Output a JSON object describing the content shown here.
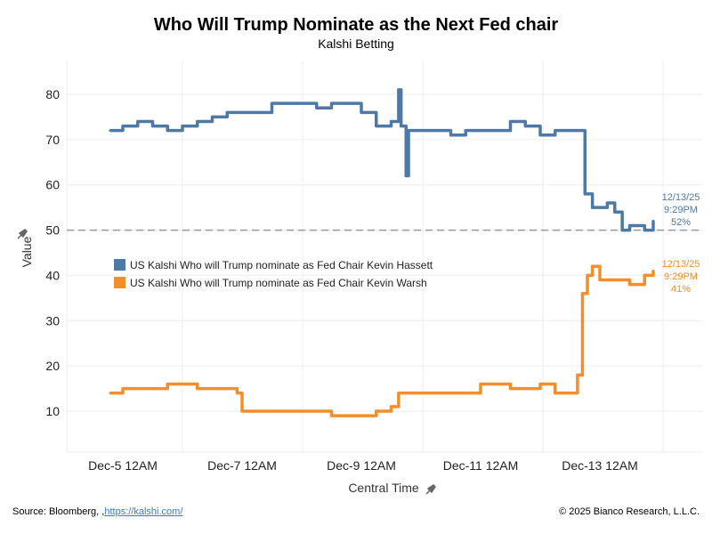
{
  "header": {
    "title": "Who Will Trump Nominate as the Next Fed chair",
    "subtitle": "Kalshi Betting"
  },
  "footer": {
    "source_prefix": "Source: Bloomberg, ,",
    "source_link": "https://kalshi.com/",
    "copyright": "© 2025 Bianco Research, L.L.C."
  },
  "chart_data": {
    "type": "line",
    "title": "Who Will Trump Nominate as the Next Fed chair",
    "subtitle": "Kalshi Betting",
    "xlabel": "Central Time",
    "ylabel": "Value",
    "ylim": [
      1,
      88
    ],
    "yticks": [
      10,
      20,
      30,
      40,
      50,
      60,
      70,
      80
    ],
    "xticks": [
      {
        "t": "2025-12-05T00:00",
        "label": "Dec-5 12AM"
      },
      {
        "t": "2025-12-07T00:00",
        "label": "Dec-7 12AM"
      },
      {
        "t": "2025-12-09T00:00",
        "label": "Dec-9 12AM"
      },
      {
        "t": "2025-12-11T00:00",
        "label": "Dec-11 12AM"
      },
      {
        "t": "2025-12-13T00:00",
        "label": "Dec-13 12AM"
      }
    ],
    "reference_line": 50,
    "grid": true,
    "legend_position": "center-left",
    "series": [
      {
        "name": "US Kalshi Who will Trump nominate as Fed Chair Kevin Hassett",
        "color": "#4e79a7",
        "end_label": {
          "date": "12/13/25",
          "time": "9:29PM",
          "value": "52%"
        },
        "points": [
          [
            "2025-12-04T19:00",
            72
          ],
          [
            "2025-12-05T00:00",
            73
          ],
          [
            "2025-12-05T06:00",
            74
          ],
          [
            "2025-12-05T12:00",
            73
          ],
          [
            "2025-12-05T18:00",
            72
          ],
          [
            "2025-12-06T00:00",
            73
          ],
          [
            "2025-12-06T06:00",
            74
          ],
          [
            "2025-12-06T12:00",
            75
          ],
          [
            "2025-12-06T18:00",
            76
          ],
          [
            "2025-12-07T00:00",
            76
          ],
          [
            "2025-12-07T06:00",
            76
          ],
          [
            "2025-12-07T12:00",
            78
          ],
          [
            "2025-12-07T18:00",
            78
          ],
          [
            "2025-12-08T00:00",
            78
          ],
          [
            "2025-12-08T06:00",
            77
          ],
          [
            "2025-12-08T12:00",
            78
          ],
          [
            "2025-12-08T18:00",
            78
          ],
          [
            "2025-12-09T00:00",
            76
          ],
          [
            "2025-12-09T06:00",
            73
          ],
          [
            "2025-12-09T12:00",
            74
          ],
          [
            "2025-12-09T15:00",
            81
          ],
          [
            "2025-12-09T16:00",
            73
          ],
          [
            "2025-12-09T18:00",
            62
          ],
          [
            "2025-12-09T19:00",
            72
          ],
          [
            "2025-12-10T00:00",
            72
          ],
          [
            "2025-12-10T06:00",
            72
          ],
          [
            "2025-12-10T12:00",
            71
          ],
          [
            "2025-12-10T18:00",
            72
          ],
          [
            "2025-12-11T00:00",
            72
          ],
          [
            "2025-12-11T06:00",
            72
          ],
          [
            "2025-12-11T12:00",
            74
          ],
          [
            "2025-12-11T18:00",
            73
          ],
          [
            "2025-12-12T00:00",
            71
          ],
          [
            "2025-12-12T06:00",
            72
          ],
          [
            "2025-12-12T12:00",
            72
          ],
          [
            "2025-12-12T15:00",
            72
          ],
          [
            "2025-12-12T18:00",
            58
          ],
          [
            "2025-12-12T21:00",
            55
          ],
          [
            "2025-12-13T00:00",
            55
          ],
          [
            "2025-12-13T03:00",
            56
          ],
          [
            "2025-12-13T06:00",
            54
          ],
          [
            "2025-12-13T09:00",
            50
          ],
          [
            "2025-12-13T12:00",
            51
          ],
          [
            "2025-12-13T18:00",
            50
          ],
          [
            "2025-12-13T21:29",
            52
          ]
        ]
      },
      {
        "name": "US Kalshi Who will Trump nominate as Fed Chair Kevin Warsh",
        "color": "#f28e2b",
        "end_label": {
          "date": "12/13/25",
          "time": "9:29PM",
          "value": "41%"
        },
        "points": [
          [
            "2025-12-04T19:00",
            14
          ],
          [
            "2025-12-05T00:00",
            15
          ],
          [
            "2025-12-05T12:00",
            15
          ],
          [
            "2025-12-05T18:00",
            16
          ],
          [
            "2025-12-06T00:00",
            16
          ],
          [
            "2025-12-06T06:00",
            15
          ],
          [
            "2025-12-06T18:00",
            15
          ],
          [
            "2025-12-06T22:00",
            14
          ],
          [
            "2025-12-07T00:00",
            10
          ],
          [
            "2025-12-07T12:00",
            10
          ],
          [
            "2025-12-08T00:00",
            10
          ],
          [
            "2025-12-08T12:00",
            9
          ],
          [
            "2025-12-09T00:00",
            9
          ],
          [
            "2025-12-09T06:00",
            10
          ],
          [
            "2025-12-09T12:00",
            11
          ],
          [
            "2025-12-09T15:00",
            14
          ],
          [
            "2025-12-10T00:00",
            14
          ],
          [
            "2025-12-10T12:00",
            14
          ],
          [
            "2025-12-11T00:00",
            16
          ],
          [
            "2025-12-11T06:00",
            16
          ],
          [
            "2025-12-11T12:00",
            15
          ],
          [
            "2025-12-11T18:00",
            15
          ],
          [
            "2025-12-12T00:00",
            16
          ],
          [
            "2025-12-12T06:00",
            14
          ],
          [
            "2025-12-12T12:00",
            14
          ],
          [
            "2025-12-12T15:00",
            18
          ],
          [
            "2025-12-12T17:00",
            36
          ],
          [
            "2025-12-12T19:00",
            40
          ],
          [
            "2025-12-12T21:00",
            42
          ],
          [
            "2025-12-13T00:00",
            39
          ],
          [
            "2025-12-13T06:00",
            39
          ],
          [
            "2025-12-13T12:00",
            38
          ],
          [
            "2025-12-13T18:00",
            40
          ],
          [
            "2025-12-13T21:29",
            41
          ]
        ]
      }
    ]
  }
}
